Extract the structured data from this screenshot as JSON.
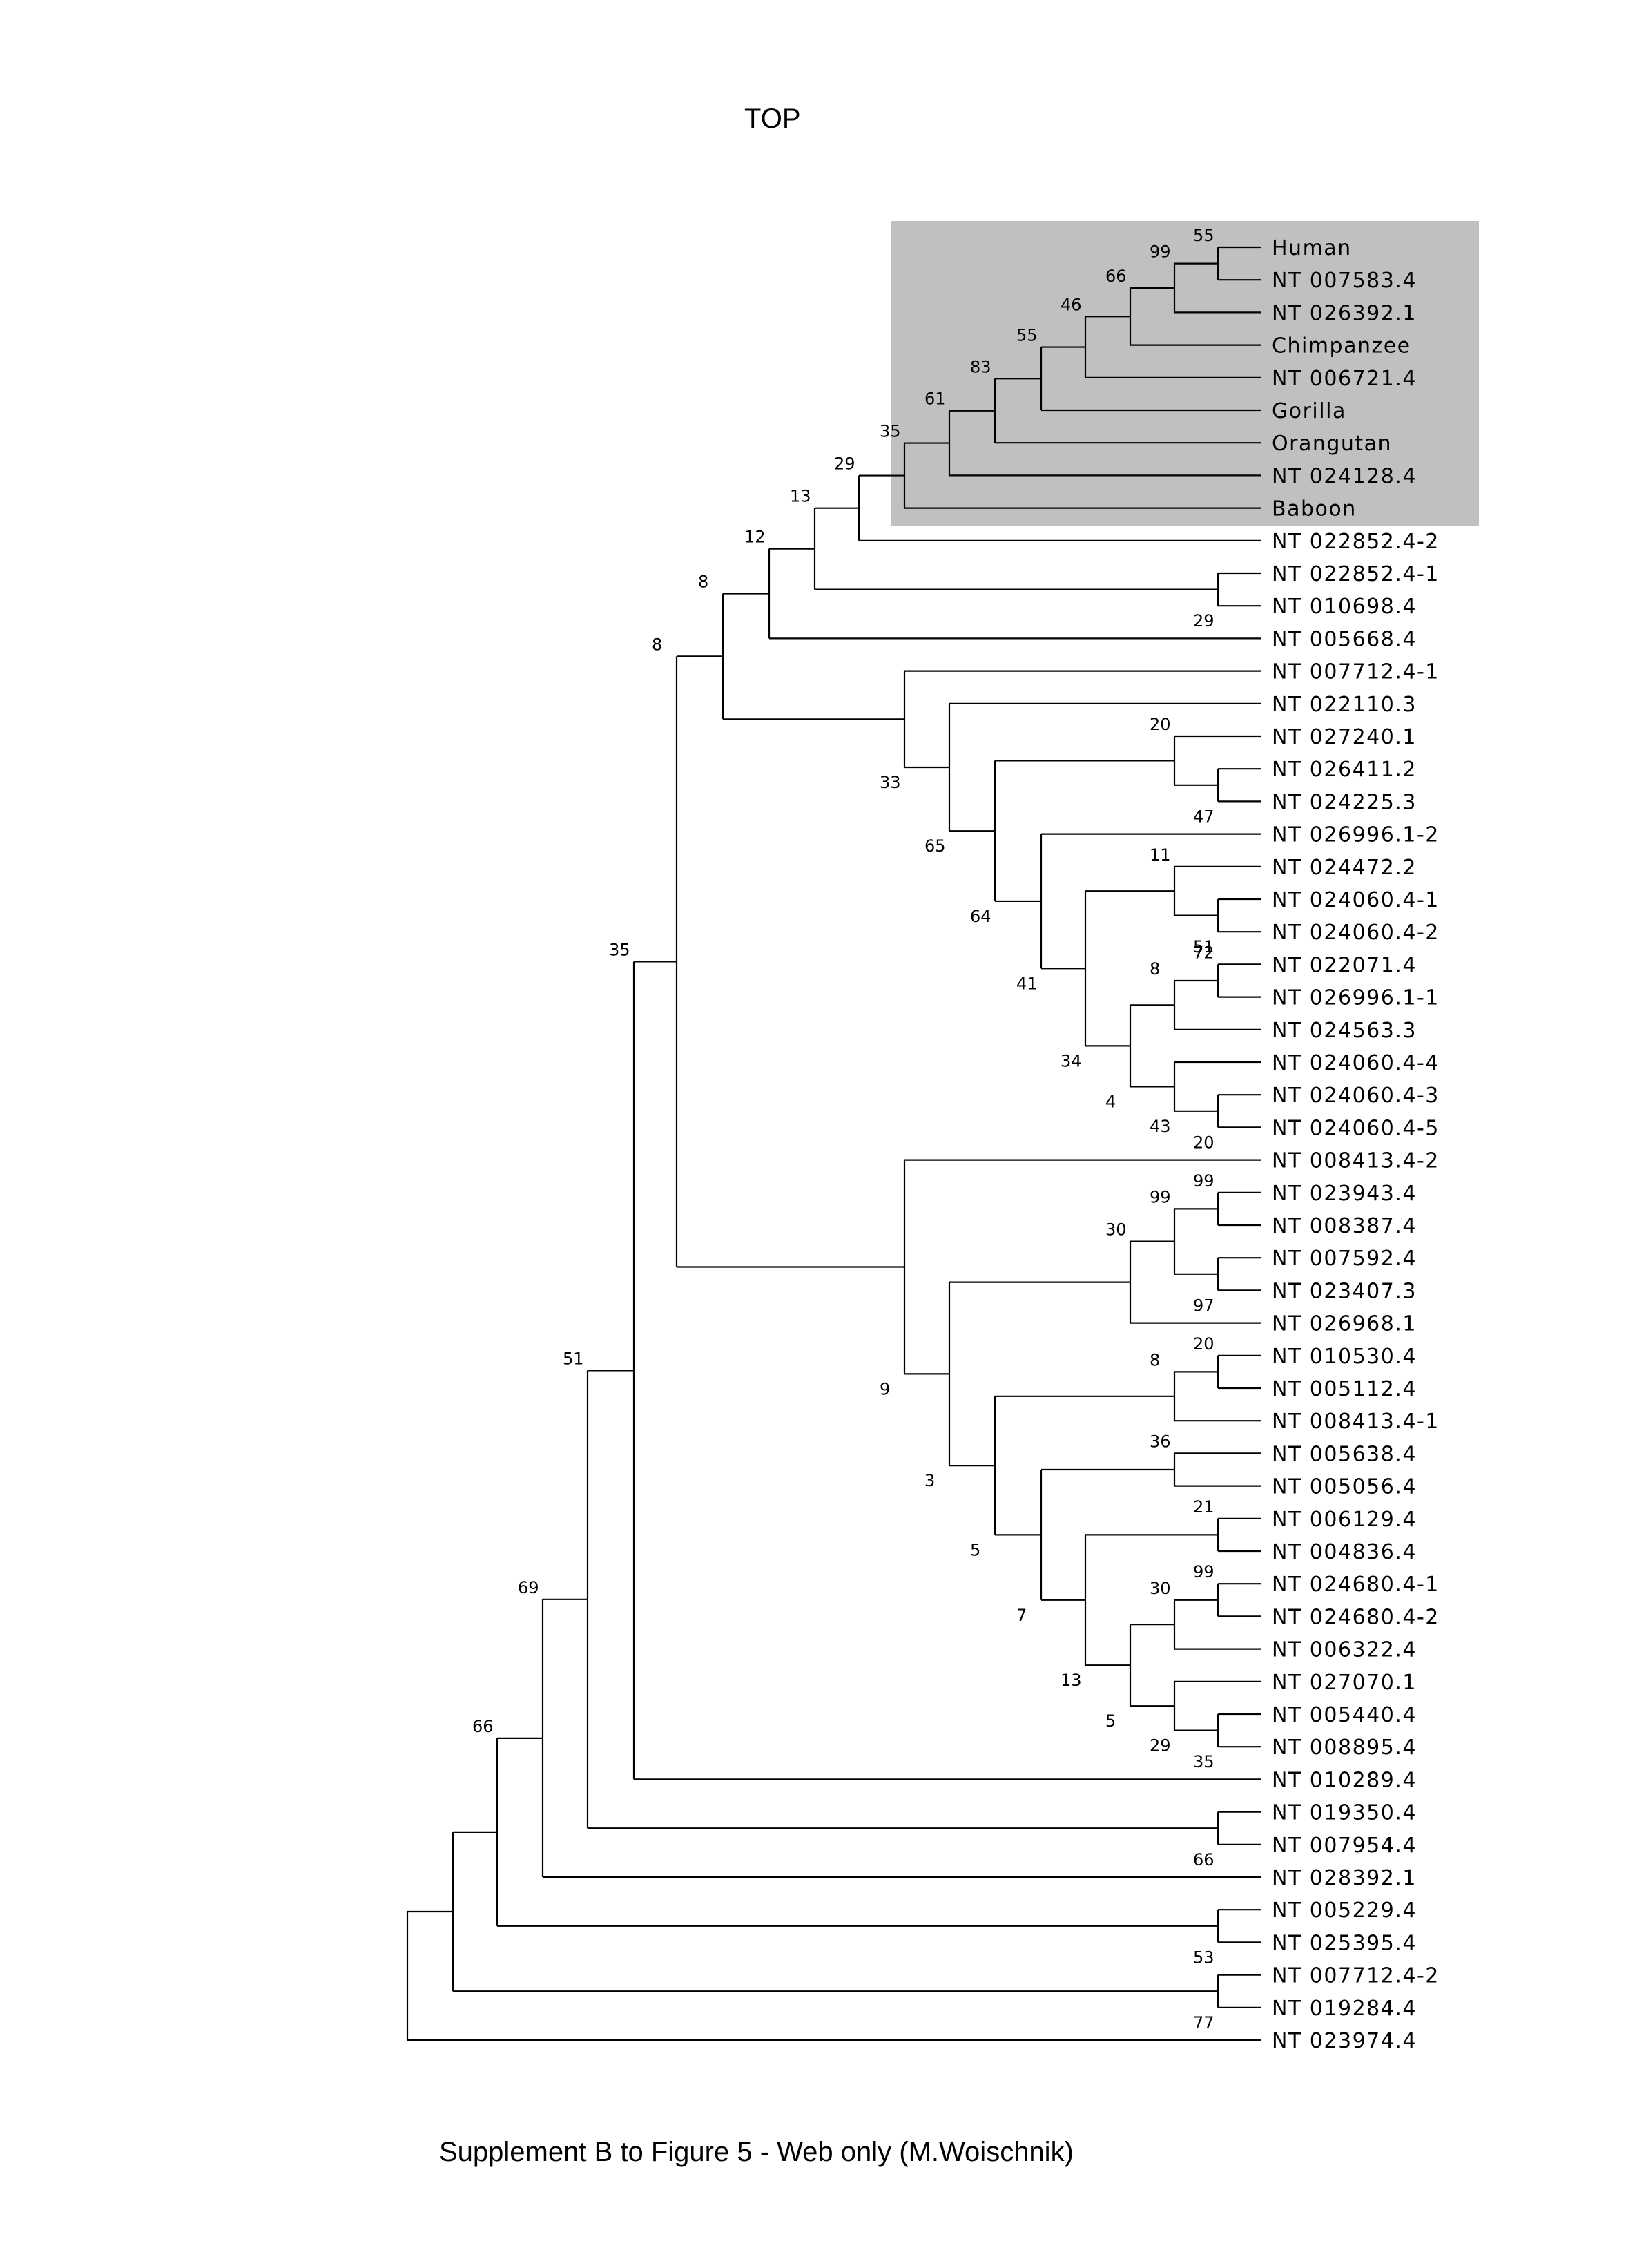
{
  "title": "TOP",
  "caption": "Supplement B to Figure 5 - Web only (M.Woischnik)",
  "colors": {
    "highlight_box": "#c0c0c0",
    "lines": "#000000",
    "background": "#ffffff"
  },
  "tree": {
    "leaves": [
      "Human",
      "NT 007583.4",
      "NT 026392.1",
      "Chimpanzee",
      "NT 006721.4",
      "Gorilla",
      "Orangutan",
      "NT 024128.4",
      "Baboon",
      "NT 022852.4-2",
      "NT 022852.4-1",
      "NT 010698.4",
      "NT 005668.4",
      "NT 007712.4-1",
      "NT 022110.3",
      "NT 027240.1",
      "NT 026411.2",
      "NT 024225.3",
      "NT 026996.1-2",
      "NT 024472.2",
      "NT 024060.4-1",
      "NT 024060.4-2",
      "NT 022071.4",
      "NT 026996.1-1",
      "NT 024563.3",
      "NT 024060.4-4",
      "NT 024060.4-3",
      "NT 024060.4-5",
      "NT 008413.4-2",
      "NT 023943.4",
      "NT 008387.4",
      "NT 007592.4",
      "NT 023407.3",
      "NT 026968.1",
      "NT 010530.4",
      "NT 005112.4",
      "NT 008413.4-1",
      "NT 005638.4",
      "NT 005056.4",
      "NT 006129.4",
      "NT 004836.4",
      "NT 024680.4-1",
      "NT 024680.4-2",
      "NT 006322.4",
      "NT 027070.1",
      "NT 005440.4",
      "NT 008895.4",
      "NT 010289.4",
      "NT 019350.4",
      "NT 007954.4",
      "NT 028392.1",
      "NT 005229.4",
      "NT 025395.4",
      "NT 007712.4-2",
      "NT 019284.4",
      "NT 023974.4"
    ],
    "highlighted_clade": [
      "Human",
      "NT 007583.4",
      "NT 026392.1",
      "Chimpanzee",
      "NT 006721.4",
      "Gorilla",
      "Orangutan",
      "NT 024128.4",
      "Baboon"
    ],
    "nodes": [
      {
        "id": "a1",
        "support": "55",
        "children": [
          "Human",
          "NT 007583.4"
        ]
      },
      {
        "id": "a2",
        "support": "99",
        "children": [
          "a1",
          "NT 026392.1"
        ]
      },
      {
        "id": "a3",
        "support": "66",
        "children": [
          "a2",
          "Chimpanzee"
        ]
      },
      {
        "id": "a4",
        "support": "46",
        "children": [
          "a3",
          "NT 006721.4"
        ]
      },
      {
        "id": "a5",
        "support": "55",
        "children": [
          "a4",
          "Gorilla"
        ]
      },
      {
        "id": "a6",
        "support": "83",
        "children": [
          "a5",
          "Orangutan"
        ]
      },
      {
        "id": "a7",
        "support": "61",
        "children": [
          "a6",
          "NT 024128.4"
        ]
      },
      {
        "id": "a8",
        "support": "35",
        "children": [
          "a7",
          "Baboon"
        ]
      },
      {
        "id": "a9",
        "support": "29",
        "children": [
          "a8",
          "NT 022852.4-2"
        ]
      },
      {
        "id": "b1",
        "support": "29",
        "children": [
          "NT 022852.4-1",
          "NT 010698.4"
        ]
      },
      {
        "id": "a10",
        "support": "13",
        "children": [
          "a9",
          "b1"
        ]
      },
      {
        "id": "a11",
        "support": "12",
        "children": [
          "a10",
          "NT 005668.4"
        ]
      },
      {
        "id": "c1",
        "support": "47",
        "children": [
          "NT 026411.2",
          "NT 024225.3"
        ]
      },
      {
        "id": "c2",
        "support": "20",
        "children": [
          "NT 027240.1",
          "c1"
        ]
      },
      {
        "id": "c3",
        "support": "51",
        "children": [
          "NT 024060.4-1",
          "NT 024060.4-2"
        ]
      },
      {
        "id": "c4",
        "support": "11",
        "children": [
          "NT 024472.2",
          "c3"
        ]
      },
      {
        "id": "c5",
        "support": "72",
        "children": [
          "NT 022071.4",
          "NT 026996.1-1"
        ]
      },
      {
        "id": "c6",
        "support": "8",
        "children": [
          "c5",
          "NT 024563.3"
        ]
      },
      {
        "id": "c7",
        "support": "20",
        "children": [
          "NT 024060.4-3",
          "NT 024060.4-5"
        ]
      },
      {
        "id": "c8",
        "support": "43",
        "children": [
          "NT 024060.4-4",
          "c7"
        ]
      },
      {
        "id": "c9",
        "support": "4",
        "children": [
          "c6",
          "c8"
        ]
      },
      {
        "id": "c10",
        "support": "34",
        "children": [
          "c4",
          "c9"
        ]
      },
      {
        "id": "c11",
        "support": "41",
        "children": [
          "NT 026996.1-2",
          "c10"
        ]
      },
      {
        "id": "c12",
        "support": "64",
        "children": [
          "c2",
          "c11"
        ]
      },
      {
        "id": "c13",
        "support": "65",
        "children": [
          "NT 022110.3",
          "c12"
        ]
      },
      {
        "id": "c14",
        "support": "33",
        "children": [
          "NT 007712.4-1",
          "c13"
        ]
      },
      {
        "id": "n8a",
        "support": "8",
        "children": [
          "a11",
          "c14"
        ]
      },
      {
        "id": "d1",
        "support": "99",
        "children": [
          "NT 023943.4",
          "NT 008387.4"
        ]
      },
      {
        "id": "d2",
        "support": "97",
        "children": [
          "NT 007592.4",
          "NT 023407.3"
        ]
      },
      {
        "id": "d3",
        "support": "99",
        "children": [
          "d1",
          "d2"
        ]
      },
      {
        "id": "d4",
        "support": "30",
        "children": [
          "d3",
          "NT 026968.1"
        ]
      },
      {
        "id": "d5",
        "support": "20",
        "children": [
          "NT 010530.4",
          "NT 005112.4"
        ]
      },
      {
        "id": "d6",
        "support": "8",
        "children": [
          "d5",
          "NT 008413.4-1"
        ]
      },
      {
        "id": "d7",
        "support": "36",
        "children": [
          "NT 005638.4",
          "NT 005056.4"
        ]
      },
      {
        "id": "d8",
        "support": "21",
        "children": [
          "NT 006129.4",
          "NT 004836.4"
        ]
      },
      {
        "id": "d9",
        "support": "99",
        "children": [
          "NT 024680.4-1",
          "NT 024680.4-2"
        ]
      },
      {
        "id": "d10",
        "support": "30",
        "children": [
          "d9",
          "NT 006322.4"
        ]
      },
      {
        "id": "d11",
        "support": "35",
        "children": [
          "NT 005440.4",
          "NT 008895.4"
        ]
      },
      {
        "id": "d12",
        "support": "29",
        "children": [
          "NT 027070.1",
          "d11"
        ]
      },
      {
        "id": "d13",
        "support": "5",
        "children": [
          "d10",
          "d12"
        ]
      },
      {
        "id": "d14",
        "support": "13",
        "children": [
          "d8",
          "d13"
        ]
      },
      {
        "id": "d15",
        "support": "7",
        "children": [
          "d7",
          "d14"
        ]
      },
      {
        "id": "d16",
        "support": "5",
        "children": [
          "d6",
          "d15"
        ]
      },
      {
        "id": "d17",
        "support": "3",
        "children": [
          "d4",
          "d16"
        ]
      },
      {
        "id": "d18",
        "support": "9",
        "children": [
          "NT 008413.4-2",
          "d17"
        ]
      },
      {
        "id": "n8b",
        "support": "8",
        "children": [
          "n8a",
          "d18"
        ]
      },
      {
        "id": "n35",
        "support": "35",
        "children": [
          "n8b",
          "NT 010289.4"
        ]
      },
      {
        "id": "e1",
        "support": "66",
        "children": [
          "NT 019350.4",
          "NT 007954.4"
        ]
      },
      {
        "id": "n51",
        "support": "51",
        "children": [
          "n35",
          "e1"
        ]
      },
      {
        "id": "n69",
        "support": "69",
        "children": [
          "n51",
          "NT 028392.1"
        ]
      },
      {
        "id": "e2",
        "support": "53",
        "children": [
          "NT 005229.4",
          "NT 025395.4"
        ]
      },
      {
        "id": "n66",
        "support": "66",
        "children": [
          "n69",
          "e2"
        ]
      },
      {
        "id": "e3",
        "support": "77",
        "children": [
          "NT 007712.4-2",
          "NT 019284.4"
        ]
      },
      {
        "id": "r1",
        "support": "",
        "children": [
          "n66",
          "e3"
        ]
      },
      {
        "id": "root",
        "support": "",
        "children": [
          "r1",
          "NT 023974.4"
        ]
      }
    ]
  }
}
